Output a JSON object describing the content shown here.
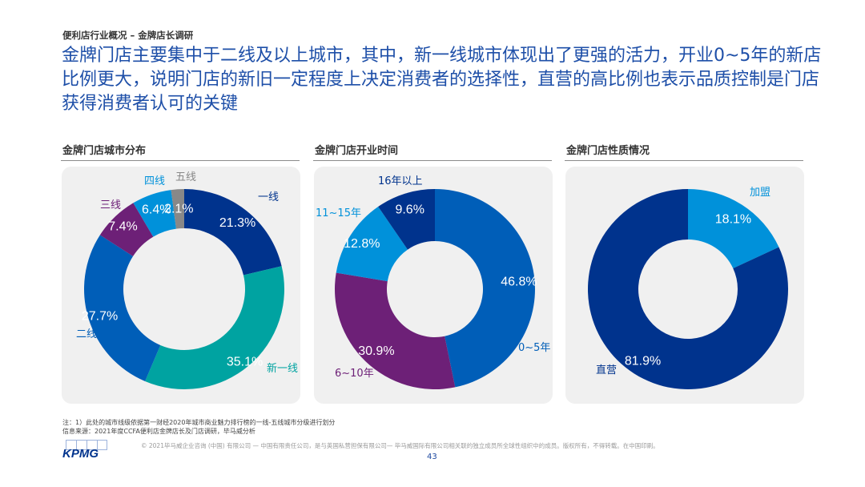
{
  "header": {
    "section_label": "便利店行业概况 – 金牌店长调研",
    "headline": "金牌门店主要集中于二线及以上城市，其中，新一线城市体现出了更强的活力，开业0~5年的新店比例更大，说明门店的新旧一定程度上决定消费者的选择性，直营的高比例也表示品质控制是门店获得消费者认可的关键"
  },
  "chart_data": [
    {
      "type": "pie",
      "variant": "donut",
      "title": "金牌门店城市分布",
      "unit": "%",
      "start": "12 o'clock, clockwise",
      "categories": [
        "一线",
        "新一线",
        "二线",
        "三线",
        "四线",
        "五线"
      ],
      "values": [
        21.3,
        35.1,
        27.7,
        7.4,
        6.4,
        2.1
      ],
      "labels": [
        "21.3%",
        "35.1%",
        "27.7%",
        "7.4%",
        "6.4%",
        "2.1%"
      ],
      "colors": [
        "#00338D",
        "#00A3A1",
        "#005EB8",
        "#6D2077",
        "#0091DA",
        "#888888"
      ]
    },
    {
      "type": "pie",
      "variant": "donut",
      "title": "金牌门店开业时间",
      "unit": "%",
      "start": "12 o'clock, clockwise",
      "categories": [
        "0~5年",
        "6~10年",
        "11~15年",
        "16年以上"
      ],
      "values": [
        46.8,
        30.9,
        12.8,
        9.6
      ],
      "labels": [
        "46.8%",
        "30.9%",
        "12.8%",
        "9.6%"
      ],
      "colors": [
        "#005EB8",
        "#6D2077",
        "#0091DA",
        "#00338D"
      ]
    },
    {
      "type": "pie",
      "variant": "donut",
      "title": "金牌门店性质情况",
      "unit": "%",
      "start": "12 o'clock, clockwise",
      "categories": [
        "加盟",
        "直营"
      ],
      "values": [
        18.1,
        81.9
      ],
      "labels": [
        "18.1%",
        "81.9%"
      ],
      "colors": [
        "#0091DA",
        "#00338D"
      ]
    }
  ],
  "footer": {
    "note": "注：1）此处的城市线级依据第一财经2020年城市商业魅力排行榜的一线-五线城市分级进行划分",
    "source": "信息来源：2021年度CCFA便利店金牌店长及门店调研，毕马威分析",
    "copyright": "© 2021毕马威企业咨询 (中国) 有限公司 — 中国有限责任公司，是与英国私营担保有限公司— 毕马威国际有限公司相关联的独立成员所全球性组织中的成员。版权所有，不得转载。在中国印刷。",
    "page_number": "43",
    "logo_text": "KPMG"
  }
}
